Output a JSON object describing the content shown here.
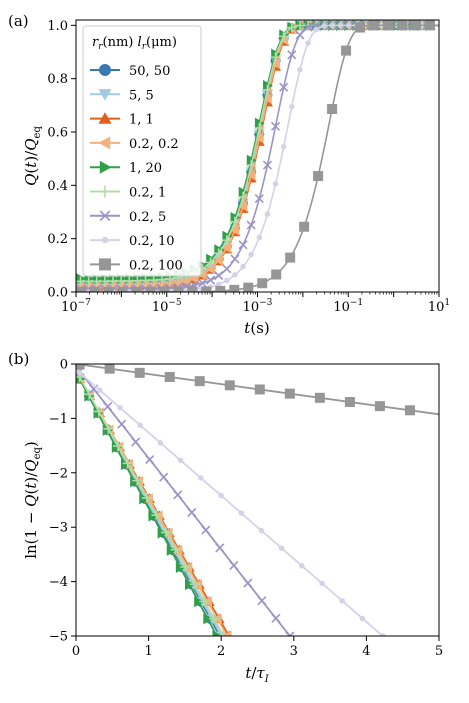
{
  "colors": {
    "s1": "#3a78b1",
    "s2": "#a3cbe3",
    "s3": "#e0601a",
    "s4": "#f4b07a",
    "s5": "#2ea04a",
    "s6": "#b4dca8",
    "s7": "#9a94c6",
    "s8": "#d4d2e8",
    "s9": "#969696"
  },
  "chart_data": [
    {
      "panel_label": "(a)",
      "type": "line",
      "xlabel": "t(s)",
      "ylabel": "Q(t)/Q_eq",
      "xscale": "log",
      "xlim": [
        1e-07,
        10
      ],
      "ylim": [
        0,
        1.02
      ],
      "x_ticks": [
        1e-07,
        1e-05,
        0.001,
        0.1,
        10
      ],
      "x_tick_labels": [
        "10^-7",
        "10^-5",
        "10^-3",
        "10^-1",
        "10^1"
      ],
      "y_ticks": [
        0,
        0.2,
        0.4,
        0.6,
        0.8,
        1.0
      ],
      "y_tick_labels": [
        "0.0",
        "0.2",
        "0.4",
        "0.6",
        "0.8",
        "1.0"
      ],
      "legend": {
        "title": "r_r(nm)  l_r(μm)",
        "location": "upper-left",
        "entries": [
          "50, 50",
          "5, 5",
          "1, 1",
          "0.2, 0.2",
          "1, 20",
          "0.2, 1",
          "0.2, 5",
          "0.2, 10",
          "0.2, 100"
        ]
      },
      "series": [
        {
          "name": "50, 50",
          "marker": "circle",
          "color_key": "s1",
          "tau": 0.00125,
          "base": 0.02
        },
        {
          "name": "5, 5",
          "marker": "triangle-down",
          "color_key": "s2",
          "tau": 0.00125,
          "base": 0.02
        },
        {
          "name": "1, 1",
          "marker": "triangle-up",
          "color_key": "s3",
          "tau": 0.00135,
          "base": 0.02
        },
        {
          "name": "0.2, 0.2",
          "marker": "triangle-left",
          "color_key": "s4",
          "tau": 0.0013,
          "base": 0.02
        },
        {
          "name": "1, 20",
          "marker": "triangle-right",
          "color_key": "s5",
          "tau": 0.00115,
          "base": 0.05
        },
        {
          "name": "0.2, 1",
          "marker": "plus",
          "color_key": "s6",
          "tau": 0.0012,
          "base": 0.04
        },
        {
          "name": "0.2, 5",
          "marker": "x",
          "color_key": "s7",
          "tau": 0.0026,
          "base": 0.01
        },
        {
          "name": "0.2, 10",
          "marker": "point",
          "color_key": "s8",
          "tau": 0.0048,
          "base": 0.0
        },
        {
          "name": "0.2, 100",
          "marker": "square",
          "color_key": "s9",
          "tau": 0.038,
          "base": 0.0
        }
      ]
    },
    {
      "panel_label": "(b)",
      "type": "line",
      "xlabel": "t/τ_I",
      "ylabel": "ln(1 − Q(t)/Q_eq)",
      "xlim": [
        0,
        5
      ],
      "ylim": [
        -5,
        0
      ],
      "x_ticks": [
        0,
        1,
        2,
        3,
        4,
        5
      ],
      "x_tick_labels": [
        "0",
        "1",
        "2",
        "3",
        "4",
        "5"
      ],
      "y_ticks": [
        0,
        -1,
        -2,
        -3,
        -4,
        -5
      ],
      "y_tick_labels": [
        "0",
        "−1",
        "−2",
        "−3",
        "−4",
        "−5"
      ],
      "series": [
        {
          "name": "50, 50",
          "marker": "circle",
          "color_key": "s1",
          "slope": -2.45,
          "intercept": -0.15
        },
        {
          "name": "5, 5",
          "marker": "triangle-down",
          "color_key": "s2",
          "slope": -2.42,
          "intercept": -0.15
        },
        {
          "name": "1, 1",
          "marker": "triangle-up",
          "color_key": "s3",
          "slope": -2.3,
          "intercept": -0.15
        },
        {
          "name": "0.2, 0.2",
          "marker": "triangle-left",
          "color_key": "s4",
          "slope": -2.33,
          "intercept": -0.15
        },
        {
          "name": "1, 20",
          "marker": "triangle-right",
          "color_key": "s5",
          "slope": -2.5,
          "intercept": -0.15
        },
        {
          "name": "0.2, 1",
          "marker": "plus",
          "color_key": "s6",
          "slope": -2.4,
          "intercept": -0.12
        },
        {
          "name": "0.2, 5",
          "marker": "x",
          "color_key": "s7",
          "slope": -1.68,
          "intercept": -0.05
        },
        {
          "name": "0.2, 10",
          "marker": "point",
          "color_key": "s8",
          "slope": -1.16,
          "intercept": -0.1
        },
        {
          "name": "0.2, 100",
          "marker": "square",
          "color_key": "s9",
          "slope": -0.185,
          "intercept": 0.0
        }
      ]
    }
  ]
}
